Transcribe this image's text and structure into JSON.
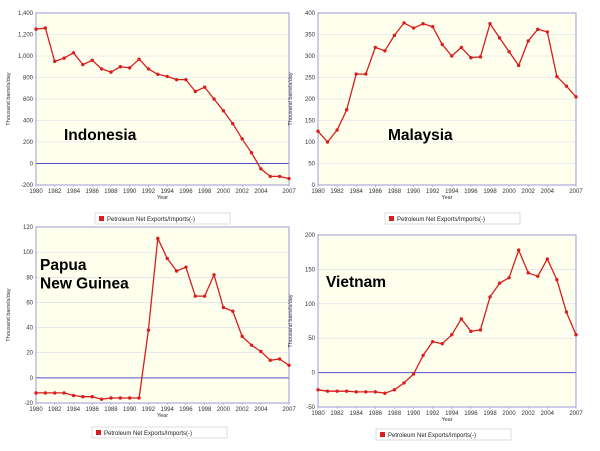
{
  "colors": {
    "plot_bg": "#ffffee",
    "series": "#d81e1e",
    "frame": "#9a9ad8",
    "grid": "#d8d8ec",
    "zero_line": "#5050c8"
  },
  "chart_data": [
    {
      "type": "line",
      "country_label": [
        "Indonesia"
      ],
      "xlabel": "Year",
      "ylabel": "Thousand barrels/day",
      "legend": [
        "Petroleum Net Exports/Imports(-)"
      ],
      "legend_position": "bottom",
      "x": [
        1980,
        1981,
        1982,
        1983,
        1984,
        1985,
        1986,
        1987,
        1988,
        1989,
        1990,
        1991,
        1992,
        1993,
        1994,
        1995,
        1996,
        1997,
        1998,
        1999,
        2000,
        2001,
        2002,
        2003,
        2004,
        2005,
        2006,
        2007
      ],
      "series": [
        {
          "name": "Petroleum Net Exports/Imports(-)",
          "values": [
            1250,
            1260,
            950,
            980,
            1030,
            920,
            960,
            880,
            850,
            900,
            890,
            970,
            880,
            830,
            810,
            780,
            780,
            670,
            710,
            600,
            490,
            370,
            230,
            100,
            -50,
            -120,
            -120,
            -140
          ]
        }
      ],
      "xlim": [
        1980,
        2007
      ],
      "ylim": [
        -200,
        1400
      ],
      "yticks": [
        -200,
        0,
        200,
        400,
        600,
        800,
        1000,
        1200,
        1400
      ],
      "ytick_labels": [
        "-200",
        "0",
        "200",
        "400",
        "600",
        "800",
        "1,000",
        "1,200",
        "1,400"
      ],
      "xticks": [
        1980,
        1982,
        1984,
        1986,
        1988,
        1990,
        1992,
        1994,
        1996,
        1998,
        2000,
        2002,
        2004,
        2007
      ],
      "grid": true
    },
    {
      "type": "line",
      "country_label": [
        "Malaysia"
      ],
      "xlabel": "Year",
      "ylabel": "Thousand barrels/day",
      "legend": [
        "Petroleum Net Exports/Imports(-)"
      ],
      "legend_position": "bottom",
      "x": [
        1980,
        1981,
        1982,
        1983,
        1984,
        1985,
        1986,
        1987,
        1988,
        1989,
        1990,
        1991,
        1992,
        1993,
        1994,
        1995,
        1996,
        1997,
        1998,
        1999,
        2000,
        2001,
        2002,
        2003,
        2004,
        2005,
        2006,
        2007
      ],
      "series": [
        {
          "name": "Petroleum Net Exports/Imports(-)",
          "values": [
            125,
            100,
            128,
            175,
            258,
            258,
            320,
            312,
            348,
            377,
            365,
            375,
            368,
            327,
            300,
            320,
            296,
            298,
            375,
            342,
            310,
            278,
            335,
            362,
            356,
            252,
            230,
            205
          ]
        }
      ],
      "xlim": [
        1980,
        2007
      ],
      "ylim": [
        0,
        400
      ],
      "yticks": [
        0,
        50,
        100,
        150,
        200,
        250,
        300,
        350,
        400
      ],
      "ytick_labels": [
        "0",
        "50",
        "100",
        "150",
        "200",
        "250",
        "300",
        "350",
        "400"
      ],
      "xticks": [
        1980,
        1982,
        1984,
        1986,
        1988,
        1990,
        1992,
        1994,
        1996,
        1998,
        2000,
        2002,
        2004,
        2007
      ],
      "grid": true
    },
    {
      "type": "line",
      "country_label": [
        "Papua",
        "New Guinea"
      ],
      "xlabel": "Year",
      "ylabel": "Thousand barrels/day",
      "legend": [
        "Petroleum Net Exports/Imports(-)"
      ],
      "legend_position": "bottom",
      "x": [
        1980,
        1981,
        1982,
        1983,
        1984,
        1985,
        1986,
        1987,
        1988,
        1989,
        1990,
        1991,
        1992,
        1993,
        1994,
        1995,
        1996,
        1997,
        1998,
        1999,
        2000,
        2001,
        2002,
        2003,
        2004,
        2005,
        2006,
        2007
      ],
      "series": [
        {
          "name": "Petroleum Net Exports/Imports(-)",
          "values": [
            -12,
            -12,
            -12,
            -12,
            -14,
            -15,
            -15,
            -17,
            -16,
            -16,
            -16,
            -16,
            38,
            111,
            95,
            85,
            88,
            65,
            65,
            82,
            56,
            53,
            33,
            26,
            21,
            14,
            15,
            10
          ]
        }
      ],
      "xlim": [
        1980,
        2007
      ],
      "ylim": [
        -20,
        120
      ],
      "yticks": [
        -20,
        0,
        20,
        40,
        60,
        80,
        100,
        120
      ],
      "ytick_labels": [
        "-20",
        "0",
        "20",
        "40",
        "60",
        "80",
        "100",
        "120"
      ],
      "xticks": [
        1980,
        1982,
        1984,
        1986,
        1988,
        1990,
        1992,
        1994,
        1996,
        1998,
        2000,
        2002,
        2004,
        2007
      ],
      "grid": true
    },
    {
      "type": "line",
      "country_label": [
        "Vietnam"
      ],
      "xlabel": "Year",
      "ylabel": "Thousand barrels/day",
      "legend": [
        "Petroleum Net Exports/Imports(-)"
      ],
      "legend_position": "bottom",
      "x": [
        1980,
        1981,
        1982,
        1983,
        1984,
        1985,
        1986,
        1987,
        1988,
        1989,
        1990,
        1991,
        1992,
        1993,
        1994,
        1995,
        1996,
        1997,
        1998,
        1999,
        2000,
        2001,
        2002,
        2003,
        2004,
        2005,
        2006,
        2007
      ],
      "series": [
        {
          "name": "Petroleum Net Exports/Imports(-)",
          "values": [
            -25,
            -27,
            -27,
            -27,
            -28,
            -28,
            -28,
            -30,
            -25,
            -15,
            -2,
            25,
            45,
            42,
            55,
            78,
            60,
            62,
            110,
            130,
            138,
            178,
            145,
            140,
            165,
            135,
            88,
            55
          ]
        }
      ],
      "xlim": [
        1980,
        2007
      ],
      "ylim": [
        -50,
        200
      ],
      "yticks": [
        -50,
        0,
        50,
        100,
        150,
        200
      ],
      "ytick_labels": [
        "-50",
        "0",
        "50",
        "100",
        "150",
        "200"
      ],
      "xticks": [
        1980,
        1982,
        1984,
        1986,
        1988,
        1990,
        1992,
        1994,
        1996,
        1998,
        2000,
        2002,
        2004,
        2007
      ],
      "grid": true
    }
  ]
}
